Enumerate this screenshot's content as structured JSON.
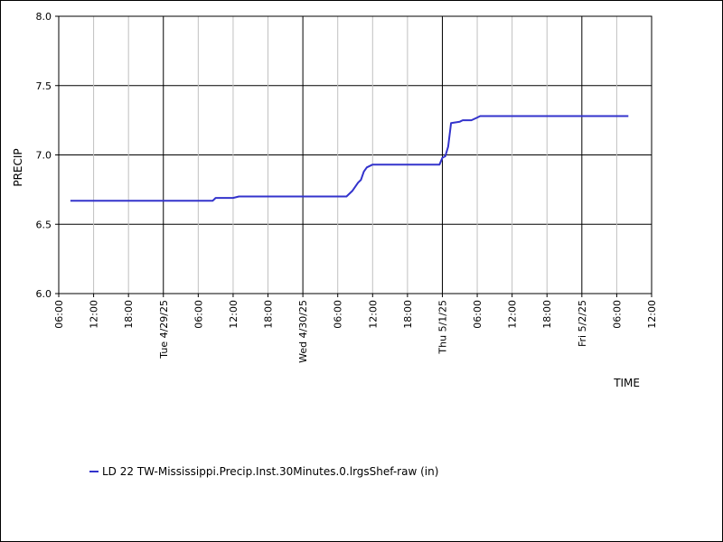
{
  "chart_data": {
    "type": "line",
    "xlabel": "TIME",
    "ylabel": "PRECIP",
    "ylim": [
      6.0,
      8.0
    ],
    "xlim": [
      "2025-04-28 06:00",
      "2025-05-02 12:00"
    ],
    "grid": true,
    "legend_position": "bottom-left",
    "y_ticks": [
      "6.0",
      "6.5",
      "7.0",
      "7.5",
      "8.0"
    ],
    "x_ticks": [
      {
        "x": "2025-04-28 06:00",
        "label": "06:00",
        "major": false
      },
      {
        "x": "2025-04-28 12:00",
        "label": "12:00",
        "major": false
      },
      {
        "x": "2025-04-28 18:00",
        "label": "18:00",
        "major": false
      },
      {
        "x": "2025-04-29 00:00",
        "label": "Tue 4/29/25",
        "major": true
      },
      {
        "x": "2025-04-29 06:00",
        "label": "06:00",
        "major": false
      },
      {
        "x": "2025-04-29 12:00",
        "label": "12:00",
        "major": false
      },
      {
        "x": "2025-04-29 18:00",
        "label": "18:00",
        "major": false
      },
      {
        "x": "2025-04-30 00:00",
        "label": "Wed 4/30/25",
        "major": true
      },
      {
        "x": "2025-04-30 06:00",
        "label": "06:00",
        "major": false
      },
      {
        "x": "2025-04-30 12:00",
        "label": "12:00",
        "major": false
      },
      {
        "x": "2025-04-30 18:00",
        "label": "18:00",
        "major": false
      },
      {
        "x": "2025-05-01 00:00",
        "label": "Thu 5/1/25",
        "major": true
      },
      {
        "x": "2025-05-01 06:00",
        "label": "06:00",
        "major": false
      },
      {
        "x": "2025-05-01 12:00",
        "label": "12:00",
        "major": false
      },
      {
        "x": "2025-05-01 18:00",
        "label": "18:00",
        "major": false
      },
      {
        "x": "2025-05-02 00:00",
        "label": "Fri 5/2/25",
        "major": true
      },
      {
        "x": "2025-05-02 06:00",
        "label": "06:00",
        "major": false
      },
      {
        "x": "2025-05-02 12:00",
        "label": "12:00",
        "major": false
      }
    ],
    "series": [
      {
        "name": "LD 22 TW-Mississippi.Precip.Inst.30Minutes.0.lrgsShef-raw (in)",
        "color": "#3333cc",
        "points": [
          [
            "2025-04-28 08:00",
            6.67
          ],
          [
            "2025-04-29 08:30",
            6.67
          ],
          [
            "2025-04-29 09:00",
            6.69
          ],
          [
            "2025-04-29 12:00",
            6.69
          ],
          [
            "2025-04-29 13:00",
            6.7
          ],
          [
            "2025-04-30 07:30",
            6.7
          ],
          [
            "2025-04-30 08:30",
            6.74
          ],
          [
            "2025-04-30 09:30",
            6.8
          ],
          [
            "2025-04-30 10:00",
            6.82
          ],
          [
            "2025-04-30 10:30",
            6.88
          ],
          [
            "2025-04-30 11:00",
            6.91
          ],
          [
            "2025-04-30 12:00",
            6.93
          ],
          [
            "2025-04-30 23:30",
            6.93
          ],
          [
            "2025-05-01 00:00",
            6.98
          ],
          [
            "2025-05-01 00:30",
            6.99
          ],
          [
            "2025-05-01 01:00",
            7.06
          ],
          [
            "2025-05-01 01:30",
            7.23
          ],
          [
            "2025-05-01 03:00",
            7.24
          ],
          [
            "2025-05-01 03:30",
            7.25
          ],
          [
            "2025-05-01 05:00",
            7.25
          ],
          [
            "2025-05-01 06:00",
            7.27
          ],
          [
            "2025-05-01 06:30",
            7.28
          ],
          [
            "2025-05-02 08:00",
            7.28
          ]
        ]
      }
    ]
  }
}
